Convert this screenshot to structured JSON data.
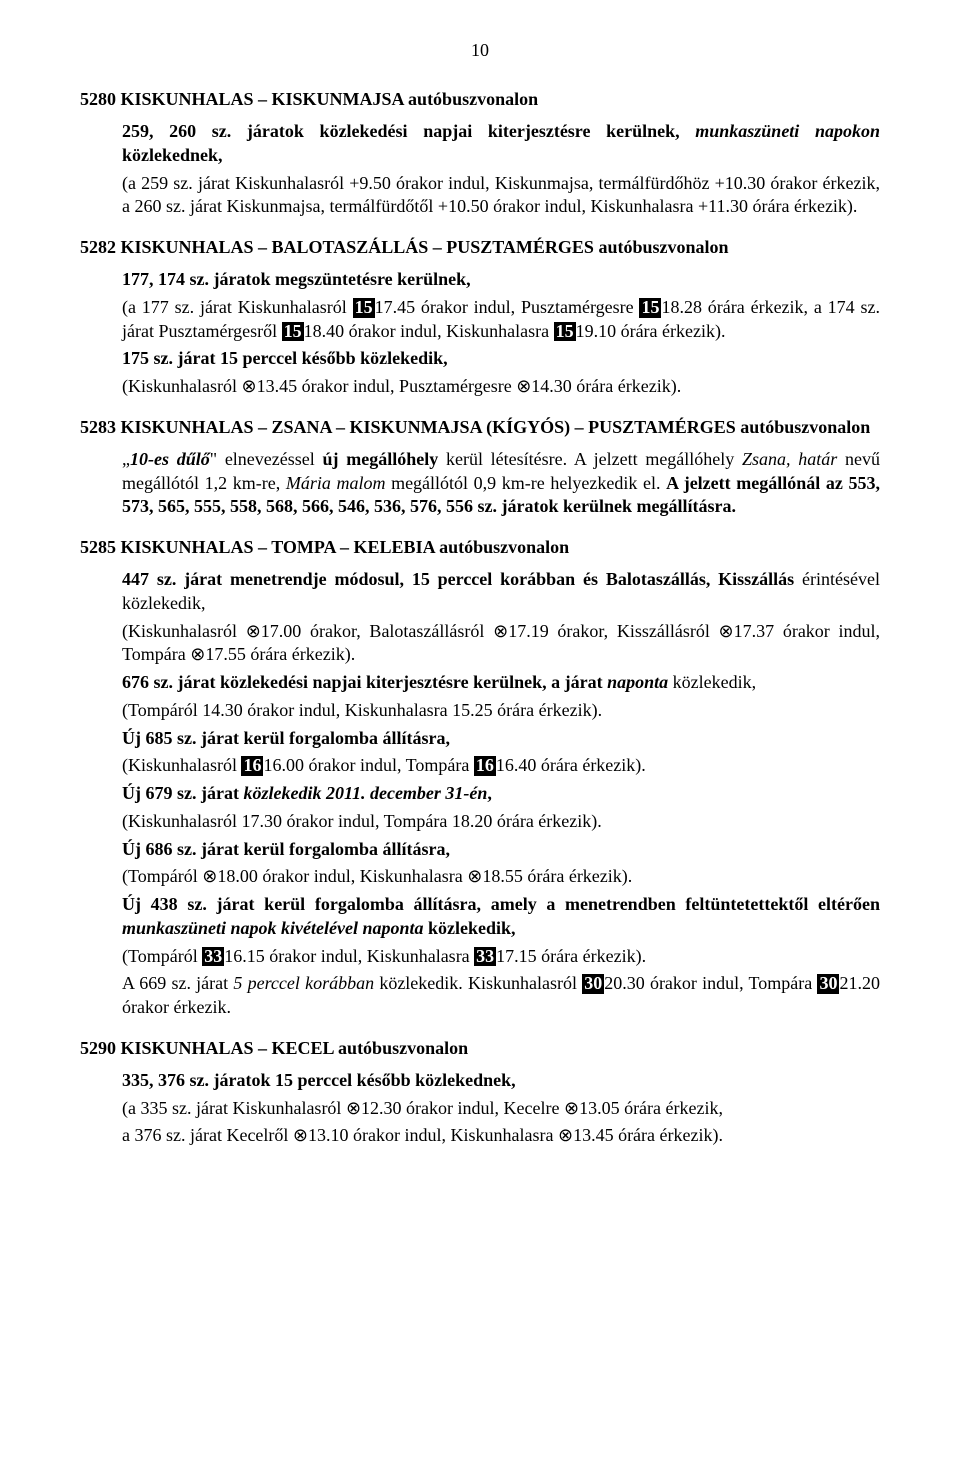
{
  "pageNumber": "10",
  "s1": {
    "title": "5280 KISKUNHALAS – KISKUNMAJSA autóbuszvonalon",
    "p1a": "259, 260 sz. járatok közlekedési napjai kiterjesztésre kerülnek, ",
    "p1b": "munkaszüneti napokon",
    "p1c": " közlekednek,",
    "p2": "(a 259 sz. járat Kiskunhalasról +9.50 órakor indul, Kiskunmajsa, termálfürdőhöz +10.30 órakor érkezik, a 260 sz. járat Kiskunmajsa, termálfürdőtől +10.50 órakor indul, Kiskunhalasra +11.30 órára érkezik)."
  },
  "s2": {
    "title": "5282 KISKUNHALAS – BALOTASZÁLLÁS – PUSZTAMÉRGES autóbuszvonalon",
    "p1": "177, 174 sz. járatok megszüntetésre kerülnek,",
    "p2a": "(a 177 sz. járat Kiskunhalasról ",
    "inv1": "15",
    "p2b": "17.45 órakor indul, Pusztamérgesre ",
    "inv2": "15",
    "p2c": "18.28 órára érkezik, a 174 sz. járat Pusztamérgesről ",
    "inv3": "15",
    "p2d": "18.40 órakor indul, Kiskunhalasra ",
    "inv4": "15",
    "p2e": "19.10 órára érkezik).",
    "p3": "175 sz. járat 15 perccel később közlekedik,",
    "p4a": "(Kiskunhalasról ",
    "sym1": "⊗",
    "p4b": "13.45 órakor indul, Pusztamérgesre ",
    "sym2": "⊗",
    "p4c": "14.30 órára érkezik)."
  },
  "s3": {
    "title": "5283 KISKUNHALAS – ZSANA – KISKUNMAJSA (KÍGYÓS) – PUSZTAMÉRGES autóbuszvonalon",
    "p1a": "„",
    "p1b": "10-es dűlő",
    "p1c": "\" elnevezéssel ",
    "p1d": "új megállóhely",
    "p1e": " kerül létesítésre. A jelzett megállóhely ",
    "p1f": "Zsana, határ",
    "p1g": " nevű megállótól 1,2 km-re, ",
    "p1h": "Mária malom",
    "p1i": " megállótól 0,9 km-re helyezkedik el. ",
    "p1j": "A jelzett megállónál az 553, 573, 565, 555, 558, 568, 566, 546, 536, 576, 556 sz. járatok kerülnek megállításra."
  },
  "s4": {
    "title": "5285 KISKUNHALAS – TOMPA – KELEBIA autóbuszvonalon",
    "p1a": "447 sz. járat menetrendje módosul, 15 perccel korábban és Balotaszállás, Kisszállás ",
    "p1b": "érintésével közlekedik,",
    "p2a": "(Kiskunhalasról ",
    "sym1": "⊗",
    "p2b": "17.00 órakor, Balotaszállásról ",
    "sym2": "⊗",
    "p2c": "17.19 órakor, Kisszállásról ",
    "sym3": "⊗",
    "p2d": "17.37 órakor indul, Tompára ",
    "sym4": "⊗",
    "p2e": "17.55 órára érkezik).",
    "p3a": "676 sz. járat közlekedési napjai kiterjesztésre kerülnek, a járat ",
    "p3b": "naponta",
    "p3c": " közlekedik,",
    "p4": "(Tompáról 14.30 órakor indul, Kiskunhalasra 15.25 órára érkezik).",
    "p5": "Új 685 sz. járat kerül forgalomba állításra,",
    "p6a": "(Kiskunhalasról ",
    "inv1": "16",
    "p6b": "16.00 órakor indul, Tompára ",
    "inv2": "16",
    "p6c": "16.40 órára érkezik).",
    "p7a": "Új 679 sz. járat ",
    "p7b": "közlekedik 2011. december 31-én",
    "p7c": ",",
    "p8": "(Kiskunhalasról 17.30 órakor indul, Tompára 18.20 órára érkezik).",
    "p9": "Új 686 sz. járat kerül forgalomba állításra,",
    "p10a": "(Tompáról ",
    "sym5": "⊗",
    "p10b": "18.00 órakor indul, Kiskunhalasra ",
    "sym6": "⊗",
    "p10c": "18.55 órára érkezik).",
    "p11a": "Új 438 sz. járat kerül forgalomba állításra, amely a menetrendben feltüntetettektől eltérően ",
    "p11b": "munkaszüneti napok kivételével naponta",
    "p11c": " közlekedik,",
    "p12a": "(Tompáról ",
    "inv3": "33",
    "p12b": "16.15 órakor indul, Kiskunhalasra ",
    "inv4": "33",
    "p12c": "17.15 órára érkezik).",
    "p13a": "A 669 sz. járat ",
    "p13b": "5 perccel korábban",
    "p13c": " közlekedik. Kiskunhalasról ",
    "inv5": "30",
    "p13d": "20.30 órakor indul, Tompára ",
    "inv6": "30",
    "p13e": "21.20 órakor érkezik."
  },
  "s5": {
    "title": "5290 KISKUNHALAS – KECEL autóbuszvonalon",
    "p1": "335, 376 sz. járatok 15 perccel később közlekednek,",
    "p2a": "(a 335 sz. járat Kiskunhalasról ",
    "sym1": "⊗",
    "p2b": "12.30 órakor indul, Kecelre ",
    "sym2": "⊗",
    "p2c": "13.05 órára érkezik,",
    "p3a": "a 376 sz. járat Kecelről ",
    "sym3": "⊗",
    "p3b": "13.10 órakor indul, Kiskunhalasra ",
    "sym4": "⊗",
    "p3c": "13.45 órára érkezik)."
  }
}
